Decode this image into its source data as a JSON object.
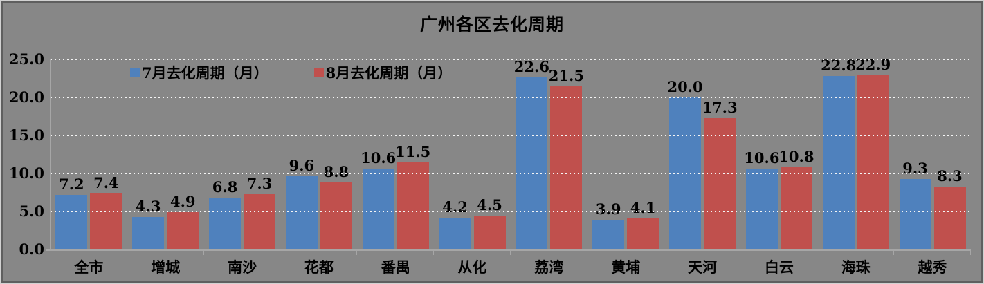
{
  "chart_data": {
    "type": "bar",
    "title": "广州各区去化周期",
    "categories": [
      "全市",
      "增城",
      "南沙",
      "花都",
      "番禺",
      "从化",
      "荔湾",
      "黄埔",
      "天河",
      "白云",
      "海珠",
      "越秀"
    ],
    "series": [
      {
        "name": "7月去化周期（月）",
        "color": "#4f81bd",
        "values": [
          7.2,
          4.3,
          6.8,
          9.6,
          10.6,
          4.2,
          22.6,
          3.9,
          20.0,
          10.6,
          22.8,
          9.3
        ]
      },
      {
        "name": "8月去化周期（月）",
        "color": "#c0504d",
        "values": [
          7.4,
          4.9,
          7.3,
          8.8,
          11.5,
          4.5,
          21.5,
          4.1,
          17.3,
          10.8,
          22.9,
          8.3
        ]
      }
    ],
    "ylim": [
      0,
      25
    ],
    "ytick_step": 5,
    "ytick_labels": [
      "0.0",
      "5.0",
      "10.0",
      "15.0",
      "20.0",
      "25.0"
    ],
    "data_label_decimals": 1,
    "grid": "horizontal dotted white",
    "legend_position": "inside top-left",
    "colors": {
      "background": "#878787",
      "frame_outer": "#d2d2d2",
      "frame_inner": "#5f5f5f",
      "axis": "#a6a6a6",
      "gridline": "#f5f5f5",
      "text": "#000000"
    }
  }
}
